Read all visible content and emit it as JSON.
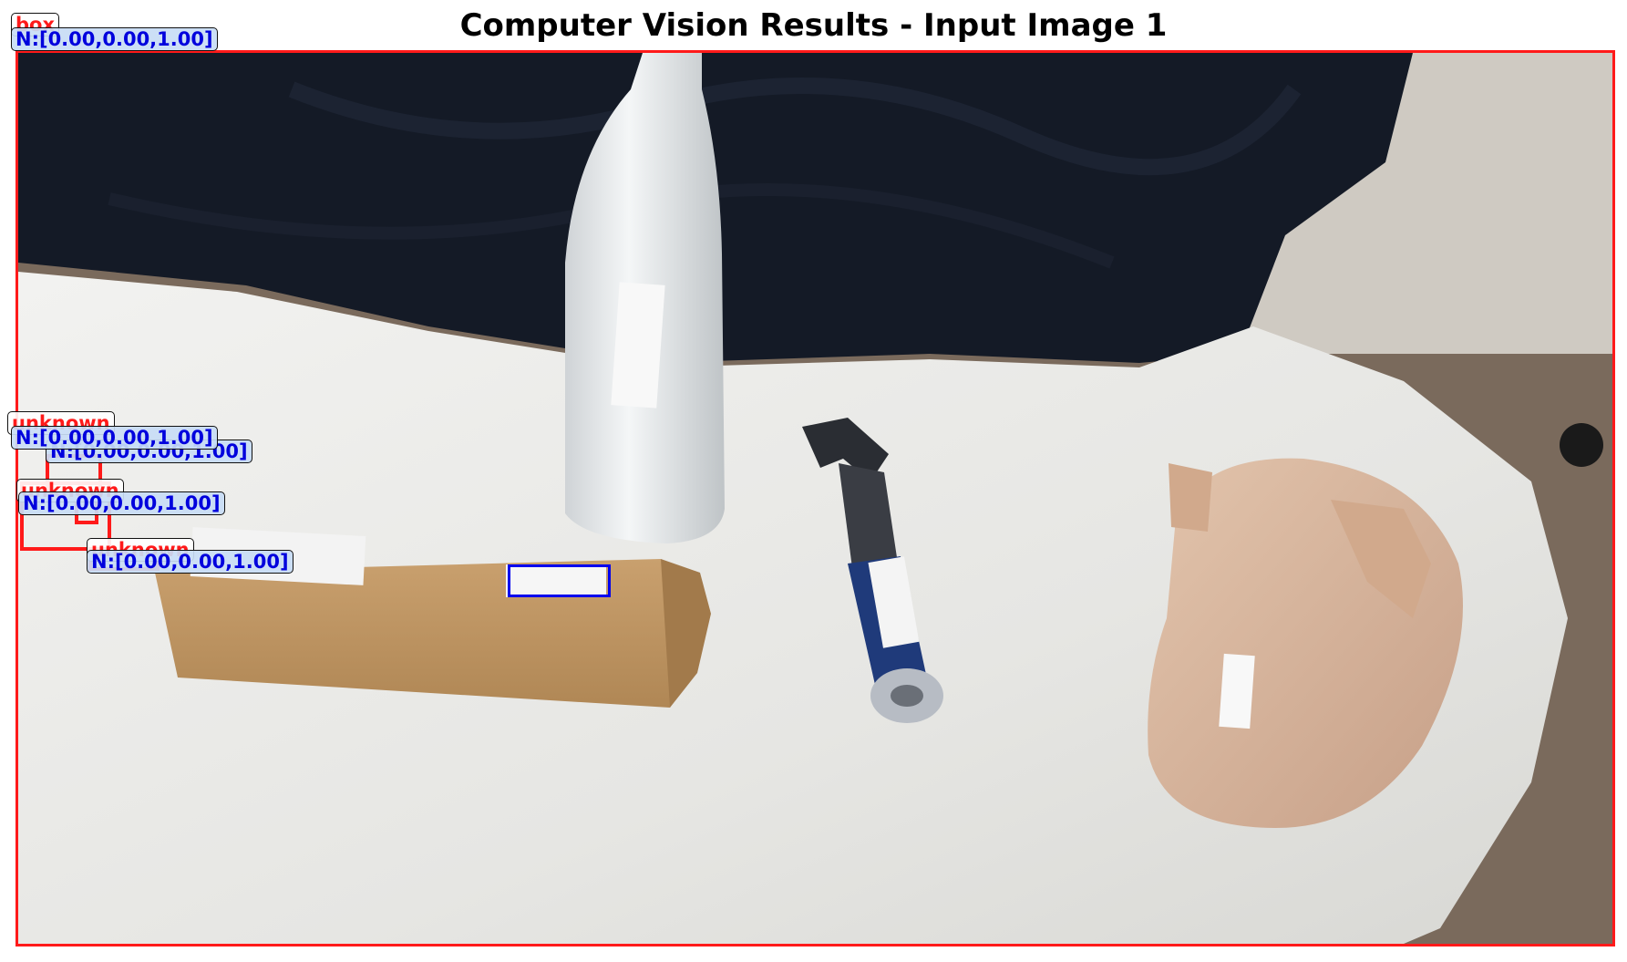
{
  "title": "Computer Vision Results - Input Image 1",
  "colors": {
    "frame": "#ff1a1a",
    "norm_text": "#0000dd",
    "class_text": "#ff1a1a"
  },
  "detections": [
    {
      "class_label": "box",
      "norm_label": "N:[0.00,0.00,1.00]"
    },
    {
      "class_label": "unknown",
      "norm_label": "N:[0.00,0.00,1.00]"
    },
    {
      "class_label": "unknown",
      "norm_label": "N:[0.00,0.00,1.00]"
    },
    {
      "class_label": "unknown",
      "norm_label": "N:[0.00,0.00,1.00]"
    },
    {
      "class_label": "unknown",
      "norm_label": "N:[0.00,0.00,1.00]"
    }
  ]
}
